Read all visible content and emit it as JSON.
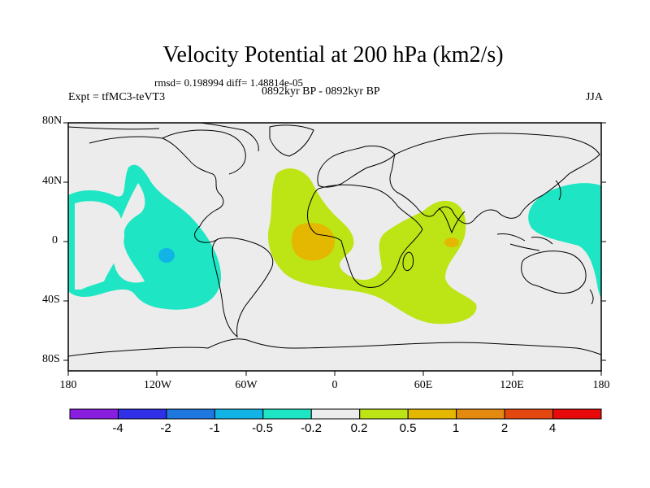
{
  "title": "Velocity Potential at 200 hPa (km2/s)",
  "stats": "rmsd= 0.198994  diff= 1.48814e-05",
  "experiment": "Expt = tfMC3-teVT3",
  "period": "0892kyr BP - 0892kyr BP",
  "season": "JJA",
  "latitude_labels": [
    "80N",
    "40N",
    "0",
    "40S",
    "80S"
  ],
  "longitude_labels": [
    "180",
    "120W",
    "60W",
    "0",
    "60E",
    "120E",
    "180"
  ],
  "colorbar": {
    "tick_labels": [
      "-4",
      "-2",
      "-1",
      "-0.5",
      "-0.2",
      "0.2",
      "0.5",
      "1",
      "2",
      "4"
    ],
    "colors": [
      "#8a1ee0",
      "#3030e8",
      "#1e78e0",
      "#12b4e6",
      "#1ee6c4",
      "#ececec",
      "#bde414",
      "#e4b800",
      "#e48a10",
      "#e44810",
      "#e80a0a"
    ]
  },
  "map": {
    "background_color": "#ececec",
    "negative_color": "#1ee6c4",
    "negative_strong_color": "#12b4e6",
    "positive_color": "#bde414",
    "positive_strong_color": "#e4b800"
  }
}
